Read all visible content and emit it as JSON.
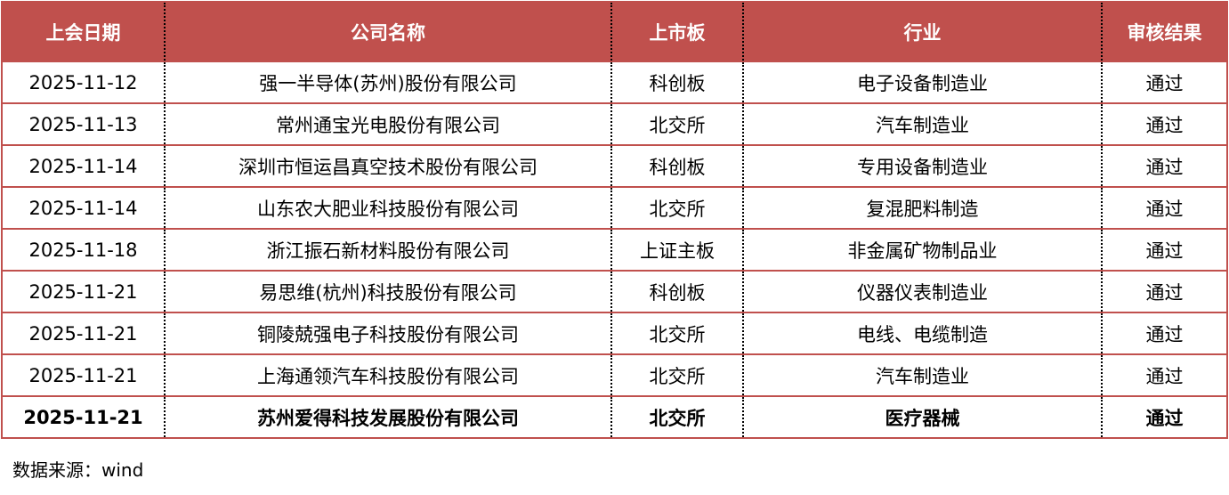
{
  "table": {
    "headers": [
      "上会日期",
      "公司名称",
      "上市板",
      "行业",
      "审核结果"
    ],
    "rows": [
      [
        "2025-11-12",
        "强一半导体(苏州)股份有限公司",
        "科创板",
        "电子设备制造业",
        "通过"
      ],
      [
        "2025-11-13",
        "常州通宝光电股份有限公司",
        "北交所",
        "汽车制造业",
        "通过"
      ],
      [
        "2025-11-14",
        "深圳市恒运昌真空技术股份有限公司",
        "科创板",
        "专用设备制造业",
        "通过"
      ],
      [
        "2025-11-14",
        "山东农大肥业科技股份有限公司",
        "北交所",
        "复混肥料制造",
        "通过"
      ],
      [
        "2025-11-18",
        "浙江振石新材料股份有限公司",
        "上证主板",
        "非金属矿物制品业",
        "通过"
      ],
      [
        "2025-11-21",
        "易思维(杭州)科技股份有限公司",
        "科创板",
        "仪器仪表制造业",
        "通过"
      ],
      [
        "2025-11-21",
        "铜陵兢强电子科技股份有限公司",
        "北交所",
        "电线、电缆制造",
        "通过"
      ],
      [
        "2025-11-21",
        "上海通领汽车科技股份有限公司",
        "北交所",
        "汽车制造业",
        "通过"
      ],
      [
        "2025-11-21",
        "苏州爱得科技发展股份有限公司",
        "北交所",
        "医疗器械",
        "通过"
      ]
    ],
    "bold_row_index": 8,
    "header_color": "#c0504d"
  },
  "source": "数据来源：wind"
}
